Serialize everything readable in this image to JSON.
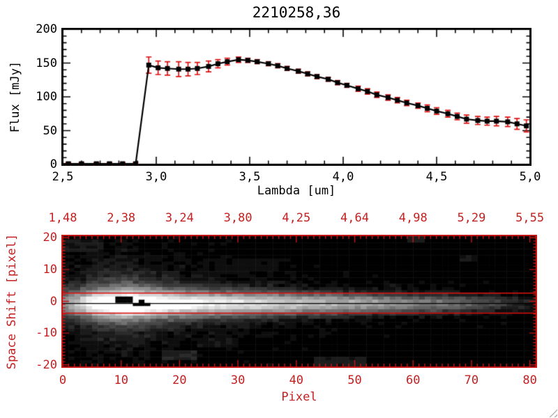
{
  "window": {
    "background": "#ffffff"
  },
  "colors": {
    "plot_black": "#000000",
    "axis_red": "#c32020",
    "frame_red": "#cc1414",
    "error_bar_red": "#dd1010",
    "aperture_line_red": "#e00e0e",
    "marker_black": "#000000",
    "grip_gray": "#b9b9b9"
  },
  "chart_data": [
    {
      "type": "line",
      "title": "2210258,36",
      "xlabel": "Lambda [um]",
      "ylabel": "Flux [mJy]",
      "xlim": [
        2.5,
        5.0
      ],
      "ylim": [
        0,
        200
      ],
      "x_tick_values": [
        2.5,
        3.0,
        3.5,
        4.0,
        4.5,
        5.0
      ],
      "x_tick_labels": [
        "2,5",
        "3,0",
        "3,5",
        "4,0",
        "4,5",
        "5,0"
      ],
      "x_minor_step": 0.1,
      "y_tick_values": [
        0,
        50,
        100,
        150,
        200
      ],
      "y_tick_labels": [
        "0",
        "50",
        "100",
        "150",
        "200"
      ],
      "y_minor_step": 10,
      "grid": false,
      "marker": "filled-square",
      "line_start": [
        2.5,
        1
      ],
      "series": [
        {
          "name": "flux",
          "x": [
            2.53,
            2.6,
            2.68,
            2.75,
            2.82,
            2.89,
            2.96,
            3.01,
            3.06,
            3.12,
            3.17,
            3.22,
            3.28,
            3.33,
            3.38,
            3.44,
            3.49,
            3.54,
            3.6,
            3.65,
            3.7,
            3.76,
            3.81,
            3.86,
            3.92,
            3.97,
            4.02,
            4.08,
            4.13,
            4.18,
            4.24,
            4.29,
            4.34,
            4.4,
            4.45,
            4.5,
            4.56,
            4.61,
            4.66,
            4.72,
            4.77,
            4.82,
            4.88,
            4.93,
            4.98
          ],
          "y": [
            1,
            1,
            1,
            1,
            1,
            1,
            147,
            143,
            142,
            141,
            141,
            142,
            145,
            149,
            152,
            155,
            154,
            152,
            149,
            146,
            142,
            138,
            134,
            130,
            126,
            121,
            117,
            112,
            108,
            103,
            99,
            95,
            91,
            87,
            83,
            79,
            75,
            71,
            67,
            65,
            64,
            64,
            63,
            60,
            57
          ],
          "yerr": [
            2,
            2,
            2,
            2,
            2,
            2,
            12,
            10,
            10,
            11,
            10,
            9,
            8,
            6,
            5,
            4,
            3,
            3,
            3,
            3,
            3,
            3,
            3,
            3,
            3,
            3,
            3,
            4,
            4,
            4,
            4,
            4,
            4,
            4,
            5,
            5,
            5,
            5,
            6,
            6,
            6,
            7,
            7,
            8,
            9
          ]
        }
      ]
    },
    {
      "type": "heatmap",
      "xlabel": "Pixel",
      "ylabel": "Space Shift [pixel]",
      "xlim": [
        0,
        81
      ],
      "ylim": [
        -20.5,
        20.5
      ],
      "x_tick_values": [
        0,
        10,
        20,
        30,
        40,
        50,
        60,
        70,
        80
      ],
      "x_tick_labels": [
        "0",
        "10",
        "20",
        "30",
        "40",
        "50",
        "60",
        "70",
        "80"
      ],
      "y_tick_values": [
        20,
        10,
        0,
        -10,
        -20
      ],
      "y_tick_labels": [
        "20",
        "10",
        "0",
        "-10",
        "-20"
      ],
      "top_axis_labels": [
        "1,48",
        "2,38",
        "3,24",
        "3,80",
        "4,25",
        "4,64",
        "4,98",
        "5,29",
        "5,55"
      ],
      "top_axis_positions": [
        0,
        10,
        20,
        30,
        40,
        50,
        60,
        70,
        80
      ],
      "colormap": "grayscale",
      "trace_model": {
        "center_y": -0.7,
        "x_knots": [
          0,
          5,
          10,
          15,
          20,
          25,
          30,
          35,
          40,
          45,
          50,
          55,
          60,
          65,
          70,
          75,
          80
        ],
        "amp": [
          0.45,
          0.88,
          1.0,
          0.97,
          0.9,
          0.86,
          0.82,
          0.78,
          0.74,
          0.7,
          0.65,
          0.59,
          0.53,
          0.47,
          0.38,
          0.25,
          0.1
        ],
        "sigma": [
          2.6,
          3.0,
          3.3,
          3.1,
          2.9,
          2.7,
          2.6,
          2.5,
          2.4,
          2.3,
          2.2,
          2.1,
          2.0,
          2.0,
          1.9,
          1.8,
          1.8
        ],
        "halo_amp": [
          0.18,
          0.26,
          0.3,
          0.22,
          0.17,
          0.14,
          0.12,
          0.1,
          0.08,
          0.06,
          0.05,
          0.04,
          0.03,
          0.03,
          0.02,
          0.015,
          0.0
        ],
        "halo_sigma": [
          7,
          9,
          10,
          9,
          8.5,
          8,
          7.5,
          7,
          6.5,
          6,
          5.5,
          5,
          5,
          4.5,
          4,
          4,
          4
        ],
        "saturated_cells": [
          [
            9,
            1
          ],
          [
            10,
            1
          ],
          [
            11,
            1
          ],
          [
            9,
            0
          ],
          [
            10,
            0
          ],
          [
            11,
            0
          ],
          [
            13,
            0
          ],
          [
            12,
            -1
          ],
          [
            13,
            -1
          ],
          [
            14,
            -1
          ]
        ],
        "patches": [
          {
            "x": 0,
            "y": 19,
            "w": 7,
            "h": 4,
            "v": 0.12
          },
          {
            "x": 26,
            "y": 13,
            "w": 11,
            "h": 4,
            "v": 0.08
          },
          {
            "x": 17,
            "y": -16,
            "w": 6,
            "h": 3,
            "v": 0.16
          },
          {
            "x": 23,
            "y": -12,
            "w": 7,
            "h": 3,
            "v": 0.1
          },
          {
            "x": 43,
            "y": -18,
            "w": 9,
            "h": 3,
            "v": 0.13
          },
          {
            "x": 55,
            "y": 5,
            "w": 3,
            "h": 2,
            "v": 0.1
          },
          {
            "x": 68,
            "y": 14,
            "w": 3,
            "h": 2,
            "v": 0.1
          },
          {
            "x": 59,
            "y": 20,
            "w": 3,
            "h": 2,
            "v": 0.12
          }
        ],
        "noise_seed": 7,
        "noise_amp": 0.12,
        "noise_bias": 0.55,
        "quant_levels": 18
      },
      "overlays": {
        "aperture_lines_y": [
          2.6,
          -3.7
        ],
        "center_line_y": -0.7
      }
    }
  ]
}
